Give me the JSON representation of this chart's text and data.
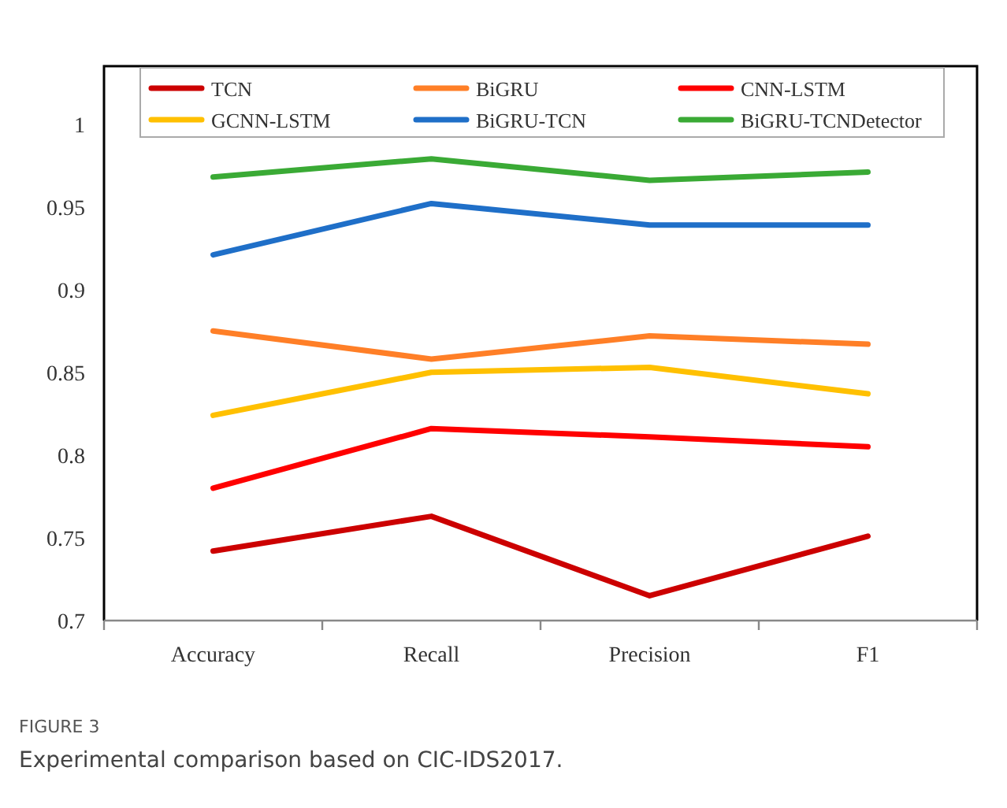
{
  "chart_data": {
    "type": "line",
    "categories": [
      "Accuracy",
      "Recall",
      "Precision",
      "F1"
    ],
    "series": [
      {
        "name": "TCN",
        "color": "#cc0000",
        "values": [
          0.742,
          0.763,
          0.715,
          0.751
        ]
      },
      {
        "name": "BiGRU",
        "color": "#ff7f27",
        "values": [
          0.875,
          0.858,
          0.872,
          0.867
        ]
      },
      {
        "name": "CNN-LSTM",
        "color": "#ff0000",
        "values": [
          0.78,
          0.816,
          0.811,
          0.805
        ]
      },
      {
        "name": "GCNN-LSTM",
        "color": "#ffc000",
        "values": [
          0.824,
          0.85,
          0.853,
          0.837
        ]
      },
      {
        "name": "BiGRU-TCN",
        "color": "#1f6fc8",
        "values": [
          0.921,
          0.952,
          0.939,
          0.939
        ]
      },
      {
        "name": "BiGRU-TCNDetector",
        "color": "#3aaa35",
        "values": [
          0.968,
          0.979,
          0.966,
          0.971
        ]
      }
    ],
    "ylim": [
      0.7,
      1.035
    ],
    "yticks": [
      0.7,
      0.75,
      0.8,
      0.85,
      0.9,
      0.95,
      1
    ],
    "grid": false,
    "legend": "top",
    "marker": "none",
    "line_style": "solid",
    "annotations": [
      "FIGURE 3",
      "Experimental comparison based on CIC-IDS2017."
    ]
  }
}
